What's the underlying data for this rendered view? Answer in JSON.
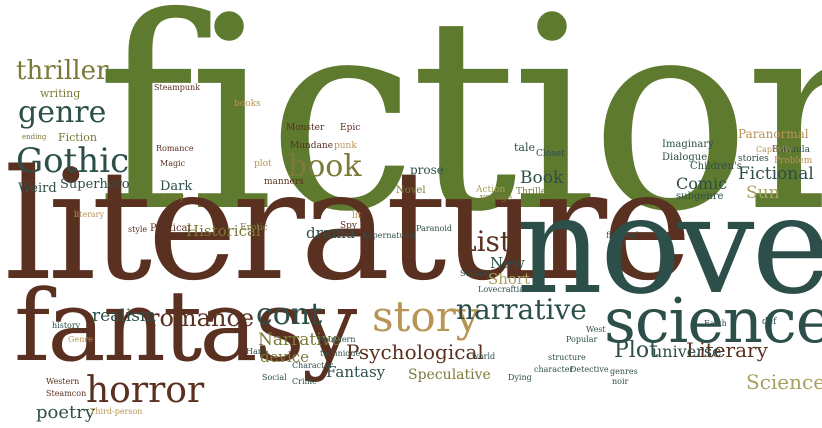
{
  "colors": {
    "green": "#5e7a2e",
    "olive": "#7c7a3a",
    "brown": "#5a3020",
    "teal": "#2d4f4a",
    "tan": "#b89455",
    "khaki": "#a8a060"
  },
  "words": [
    {
      "id": "fiction",
      "text": "fiction",
      "color": "green"
    },
    {
      "id": "literature",
      "text": "literature",
      "color": "brown"
    },
    {
      "id": "novel",
      "text": "novel",
      "color": "teal"
    },
    {
      "id": "fantasy",
      "text": "fantasy",
      "color": "brown"
    },
    {
      "id": "science",
      "text": "science",
      "color": "teal"
    },
    {
      "id": "gothic",
      "text": "Gothic",
      "color": "teal"
    },
    {
      "id": "horror",
      "text": "horror",
      "color": "brown"
    },
    {
      "id": "story",
      "text": "story",
      "color": "tan"
    },
    {
      "id": "book",
      "text": "book",
      "color": "olive"
    },
    {
      "id": "genre",
      "text": "genre",
      "color": "teal"
    },
    {
      "id": "thriller-big",
      "text": "thriller",
      "color": "olive"
    },
    {
      "id": "narrative",
      "text": "narrative",
      "color": "teal"
    },
    {
      "id": "cont",
      "text": "cont",
      "color": "teal"
    },
    {
      "id": "romance",
      "text": "romance",
      "color": "brown"
    },
    {
      "id": "list",
      "text": "List",
      "color": "brown"
    },
    {
      "id": "psychological",
      "text": "Psychological",
      "color": "brown"
    },
    {
      "id": "literary",
      "text": "Literary",
      "color": "brown"
    },
    {
      "id": "plot",
      "text": "Plot",
      "color": "teal"
    },
    {
      "id": "science-small",
      "text": "Science",
      "color": "khaki"
    },
    {
      "id": "poetry",
      "text": "poetry",
      "color": "teal"
    },
    {
      "id": "fantasy-small",
      "text": "Fantasy",
      "color": "teal"
    },
    {
      "id": "narrative-small",
      "text": "Narrative",
      "color": "olive"
    },
    {
      "id": "historical",
      "text": "Historical",
      "color": "olive"
    },
    {
      "id": "realism",
      "text": "realism",
      "color": "teal"
    },
    {
      "id": "speculative",
      "text": "Speculative",
      "color": "olive"
    },
    {
      "id": "universe",
      "text": "universe",
      "color": "teal"
    },
    {
      "id": "sun",
      "text": "Sun",
      "color": "khaki"
    },
    {
      "id": "fictional",
      "text": "Fictional",
      "color": "teal"
    },
    {
      "id": "comic",
      "text": "Comic",
      "color": "teal"
    },
    {
      "id": "book-small",
      "text": "Book",
      "color": "teal"
    },
    {
      "id": "short",
      "text": "Short",
      "color": "khaki"
    },
    {
      "id": "new",
      "text": "New",
      "color": "teal"
    },
    {
      "id": "device",
      "text": "device",
      "color": "olive"
    },
    {
      "id": "drama",
      "text": "drama",
      "color": "teal"
    },
    {
      "id": "dark",
      "text": "Dark",
      "color": "teal"
    },
    {
      "id": "superhero",
      "text": "Superhero",
      "color": "teal"
    },
    {
      "id": "weird",
      "text": "Weird",
      "color": "teal"
    },
    {
      "id": "fiction-small",
      "text": "Fiction",
      "color": "olive"
    },
    {
      "id": "writing",
      "text": "writing",
      "color": "olive"
    },
    {
      "id": "novel-small",
      "text": "Novel",
      "color": "olive"
    },
    {
      "id": "prose",
      "text": "prose",
      "color": "teal"
    },
    {
      "id": "tale",
      "text": "tale",
      "color": "teal"
    },
    {
      "id": "paranormal",
      "text": "Paranormal",
      "color": "tan"
    },
    {
      "id": "imaginary",
      "text": "Imaginary",
      "color": "teal"
    },
    {
      "id": "dialogue",
      "text": "Dialogue",
      "color": "teal"
    },
    {
      "id": "childrens",
      "text": "Children's",
      "color": "teal"
    },
    {
      "id": "stories",
      "text": "stories",
      "color": "teal"
    },
    {
      "id": "formula",
      "text": "Formula",
      "color": "teal"
    },
    {
      "id": "problem",
      "text": "Problem",
      "color": "tan"
    },
    {
      "id": "captivity",
      "text": "Captivity",
      "color": "tan"
    },
    {
      "id": "subgenre",
      "text": "subgenre",
      "color": "teal"
    },
    {
      "id": "steampunk",
      "text": "Steampunk",
      "color": "brown"
    },
    {
      "id": "monster",
      "text": "Monster",
      "color": "brown"
    },
    {
      "id": "epic",
      "text": "Epic",
      "color": "brown"
    },
    {
      "id": "punk",
      "text": "punk",
      "color": "tan"
    },
    {
      "id": "mundane",
      "text": "Mundane",
      "color": "brown"
    },
    {
      "id": "romance-small",
      "text": "Romance",
      "color": "brown"
    },
    {
      "id": "magic",
      "text": "Magic",
      "color": "brown"
    },
    {
      "id": "story-small",
      "text": "Story",
      "color": "olive"
    },
    {
      "id": "manners",
      "text": "manners",
      "color": "brown"
    },
    {
      "id": "plot-small",
      "text": "plot",
      "color": "tan"
    },
    {
      "id": "books",
      "text": "books",
      "color": "tan"
    },
    {
      "id": "closet",
      "text": "Closet",
      "color": "teal"
    },
    {
      "id": "action",
      "text": "Action",
      "color": "khaki"
    },
    {
      "id": "voyage",
      "text": "voyage",
      "color": "olive"
    },
    {
      "id": "thriller-small",
      "text": "Thriller",
      "color": "olive"
    },
    {
      "id": "political",
      "text": "Political",
      "color": "brown"
    },
    {
      "id": "erotic",
      "text": "Erotic",
      "color": "olive"
    },
    {
      "id": "spy",
      "text": "Spy",
      "color": "brown"
    },
    {
      "id": "lit",
      "text": "lit",
      "color": "tan"
    },
    {
      "id": "supernatural",
      "text": "Supernatural",
      "color": "teal"
    },
    {
      "id": "paranoid",
      "text": "Paranoid",
      "color": "teal"
    },
    {
      "id": "style",
      "text": "style",
      "color": "brown"
    },
    {
      "id": "literary-small",
      "text": "literary",
      "color": "tan"
    },
    {
      "id": "setting",
      "text": "Setting",
      "color": "teal"
    },
    {
      "id": "lovecraftian",
      "text": "Lovecraftian",
      "color": "teal"
    },
    {
      "id": "popular",
      "text": "Popular",
      "color": "teal"
    },
    {
      "id": "west",
      "text": "West",
      "color": "teal"
    },
    {
      "id": "earth",
      "text": "Earth",
      "color": "teal"
    },
    {
      "id": "def",
      "text": "def",
      "color": "teal"
    },
    {
      "id": "world",
      "text": "world",
      "color": "teal"
    },
    {
      "id": "structure",
      "text": "structure",
      "color": "teal"
    },
    {
      "id": "character-small",
      "text": "character",
      "color": "teal"
    },
    {
      "id": "detective",
      "text": "Detective",
      "color": "teal"
    },
    {
      "id": "dying",
      "text": "Dying",
      "color": "teal"
    },
    {
      "id": "genres",
      "text": "genres",
      "color": "teal"
    },
    {
      "id": "noir",
      "text": "noir",
      "color": "teal"
    },
    {
      "id": "fictional-small",
      "text": "fictional",
      "color": "teal"
    },
    {
      "id": "history",
      "text": "history",
      "color": "teal"
    },
    {
      "id": "genre-small",
      "text": "Genre",
      "color": "tan"
    },
    {
      "id": "hard",
      "text": "Hard",
      "color": "teal"
    },
    {
      "id": "southern",
      "text": "Southern",
      "color": "teal"
    },
    {
      "id": "technique",
      "text": "technique",
      "color": "teal"
    },
    {
      "id": "character",
      "text": "Character",
      "color": "teal"
    },
    {
      "id": "social",
      "text": "Social",
      "color": "teal"
    },
    {
      "id": "crime",
      "text": "Crime",
      "color": "teal"
    },
    {
      "id": "western",
      "text": "Western",
      "color": "brown"
    },
    {
      "id": "steamcon",
      "text": "Steamcon",
      "color": "brown"
    },
    {
      "id": "third-person",
      "text": "Third-person",
      "color": "tan"
    },
    {
      "id": "ending",
      "text": "ending",
      "color": "olive"
    }
  ]
}
